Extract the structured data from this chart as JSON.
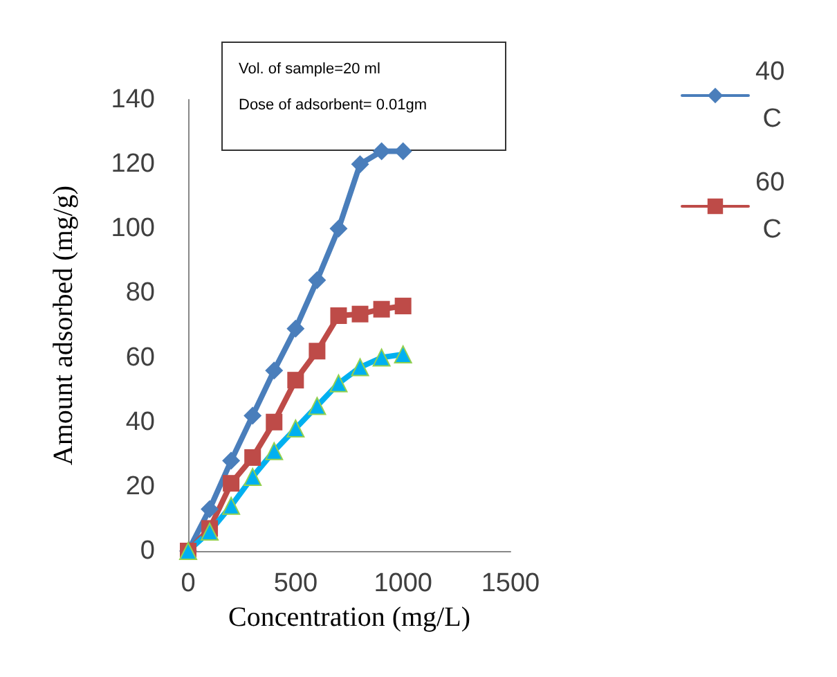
{
  "chart_data": {
    "type": "line",
    "xlabel": "Concentration (mg/L)",
    "ylabel": "Amount adsorbed (mg/g)",
    "annotations": [
      "Vol. of sample=20 ml",
      "Dose of adsorbent= 0.01gm"
    ],
    "x": [
      0,
      100,
      200,
      300,
      400,
      500,
      600,
      700,
      800,
      900,
      1000
    ],
    "series": [
      {
        "name": "40 C",
        "color": "#4a7ebb",
        "marker": "diamond",
        "values": [
          0,
          13,
          28,
          42,
          56,
          69,
          84,
          100,
          120,
          124,
          124
        ]
      },
      {
        "name": "60 C",
        "color": "#be4b48",
        "marker": "square",
        "values": [
          0,
          7,
          21,
          29,
          40,
          53,
          62,
          73,
          73.5,
          75,
          76
        ]
      },
      {
        "color": "#00b0f0",
        "marker": "triangle",
        "values": [
          0,
          6,
          14,
          23,
          31,
          38,
          45,
          52,
          57,
          60,
          61
        ]
      }
    ],
    "xlim": [
      0,
      1500
    ],
    "xticks": [
      0,
      500,
      1000,
      1500
    ],
    "ylim": [
      0,
      140
    ],
    "yticks": [
      0,
      20,
      40,
      60,
      80,
      100,
      120,
      140
    ],
    "grid": false,
    "legend": "top right",
    "line_style": "solid"
  }
}
